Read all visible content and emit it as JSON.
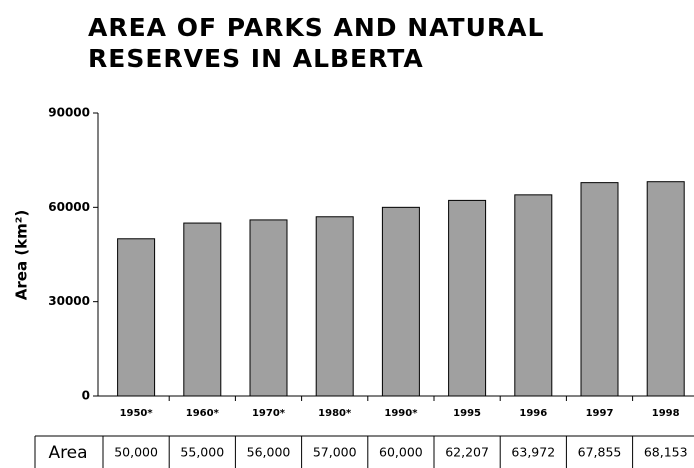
{
  "chart_data": {
    "type": "bar",
    "title": "AREA OF PARKS AND NATURAL RESERVES IN ALBERTA",
    "y_label": "Area (km²)",
    "categories": [
      "1950*",
      "1960*",
      "1970*",
      "1980*",
      "1990*",
      "1995",
      "1996",
      "1997",
      "1998"
    ],
    "values": [
      50000,
      55000,
      56000,
      57000,
      60000,
      62207,
      63972,
      67855,
      68153
    ],
    "value_labels": [
      "50,000",
      "55,000",
      "56,000",
      "57,000",
      "60,000",
      "62,207",
      "63,972",
      "67,855",
      "68,153"
    ],
    "table_row_label": "Area",
    "color": "#a0a0a0",
    "ylim": [
      0,
      90000
    ],
    "yticks": [
      0,
      30000,
      60000,
      90000
    ]
  }
}
